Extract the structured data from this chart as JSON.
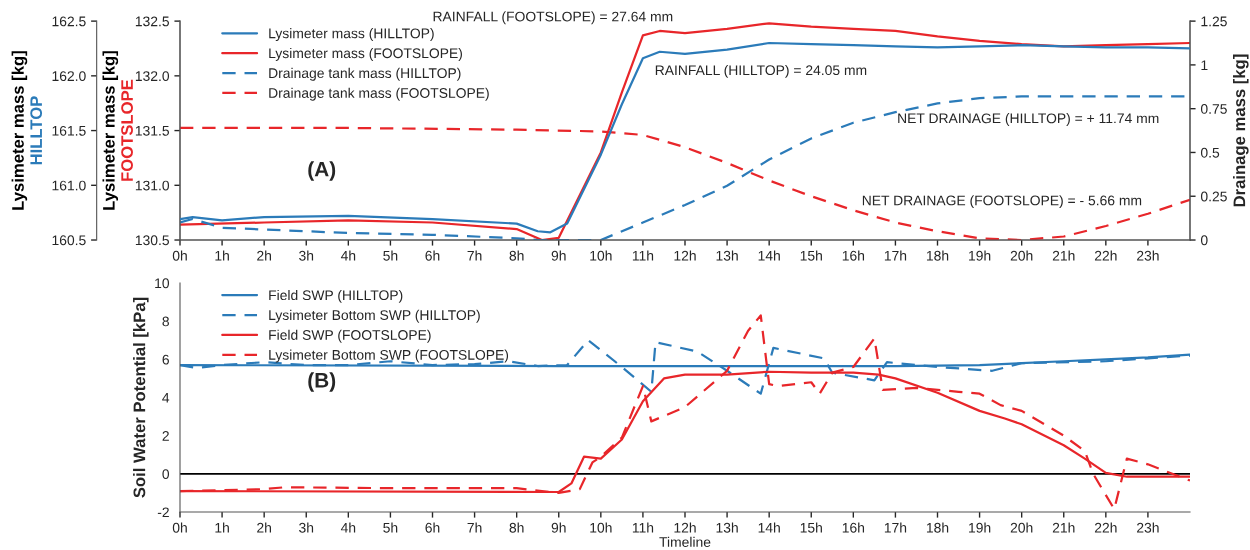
{
  "chart_data": [
    {
      "type": "line",
      "ylabel": "Lysimeter mass [kg]\nFOOTSLOPE",
      "y2label": "Drainage mass [kg]",
      "y3label": "Lysimeter mass [kg]\nHILLTOP",
      "xlim": [
        0,
        24
      ],
      "xticks": [
        {
          "value": 0,
          "label": "0h"
        },
        {
          "value": 1,
          "label": "1h"
        },
        {
          "value": 2,
          "label": "2h"
        },
        {
          "value": 3,
          "label": "3h"
        },
        {
          "value": 4,
          "label": "4h"
        },
        {
          "value": 5,
          "label": "5h"
        },
        {
          "value": 6,
          "label": "6h"
        },
        {
          "value": 7,
          "label": "7h"
        },
        {
          "value": 8,
          "label": "8h"
        },
        {
          "value": 9,
          "label": "9h"
        },
        {
          "value": 10,
          "label": "10h"
        },
        {
          "value": 11,
          "label": "11h"
        },
        {
          "value": 12,
          "label": "12h"
        },
        {
          "value": 13,
          "label": "13h"
        },
        {
          "value": 14,
          "label": "14h"
        },
        {
          "value": 15,
          "label": "15h"
        },
        {
          "value": 16,
          "label": "16h"
        },
        {
          "value": 17,
          "label": "17h"
        },
        {
          "value": 18,
          "label": "18h"
        },
        {
          "value": 19,
          "label": "19h"
        },
        {
          "value": 20,
          "label": "20h"
        },
        {
          "value": 21,
          "label": "21h"
        },
        {
          "value": 22,
          "label": "22h"
        },
        {
          "value": 23,
          "label": "23h"
        }
      ],
      "ylim": [
        130.5,
        132.5
      ],
      "yticks": [
        130.5,
        {
          "value": 131,
          "label": "131.0"
        },
        131.5,
        {
          "value": 132,
          "label": "132.0"
        },
        132.5
      ],
      "y2lim": [
        0,
        1.25
      ],
      "y2ticks": [
        0,
        0.25,
        0.5,
        0.75,
        1,
        1.25
      ],
      "y3lim": [
        160.5,
        162.5
      ],
      "y3ticks": [
        160.5,
        {
          "value": 161,
          "label": "161.0"
        },
        161.5,
        {
          "value": 162,
          "label": "162.0"
        },
        162.5
      ],
      "legend": "top left",
      "series": [
        {
          "name": "Lysimeter mass (HILLTOP)",
          "color": "#2b7bb9",
          "axis": "y3",
          "line_style": "solid",
          "x": [
            0,
            0.3,
            1,
            2,
            4,
            6,
            8,
            8.5,
            8.8,
            9.2,
            10,
            10.5,
            11,
            11.4,
            12,
            13,
            14,
            15,
            16,
            17,
            18,
            19,
            20,
            21,
            22,
            23,
            24
          ],
          "values": [
            160.69,
            160.71,
            160.68,
            160.71,
            160.72,
            160.69,
            160.65,
            160.58,
            160.57,
            160.65,
            161.28,
            161.74,
            162.16,
            162.22,
            162.2,
            162.24,
            162.3,
            162.29,
            162.28,
            162.27,
            162.26,
            162.27,
            162.28,
            162.27,
            162.26,
            162.26,
            162.25
          ]
        },
        {
          "name": "Lysimeter mass (FOOTSLOPE)",
          "color": "#e8262a",
          "axis": "y",
          "line_style": "solid",
          "x": [
            0,
            2,
            4,
            6,
            8,
            8.6,
            9,
            10,
            10.5,
            11,
            11.4,
            12,
            13,
            14,
            15,
            16,
            17,
            18,
            19,
            20,
            21,
            22,
            23,
            24
          ],
          "values": [
            130.64,
            130.66,
            130.68,
            130.66,
            130.6,
            130.5,
            130.52,
            131.3,
            131.85,
            132.37,
            132.41,
            132.39,
            132.43,
            132.48,
            132.45,
            132.43,
            132.41,
            132.36,
            132.32,
            132.29,
            132.27,
            132.28,
            132.29,
            132.3
          ]
        },
        {
          "name": "Drainage tank mass (HILLTOP)",
          "color": "#2b7bb9",
          "axis": "y2",
          "line_style": "dashed",
          "x": [
            0,
            0.3,
            1,
            2,
            4,
            6,
            8,
            8.5,
            10,
            11,
            12,
            13,
            14,
            15,
            16,
            17,
            18,
            19,
            20,
            22,
            24
          ],
          "values": [
            0.1,
            0.12,
            0.07,
            0.06,
            0.04,
            0.03,
            0.01,
            0,
            0,
            0.1,
            0.2,
            0.31,
            0.46,
            0.58,
            0.67,
            0.73,
            0.78,
            0.81,
            0.82,
            0.82,
            0.82
          ]
        },
        {
          "name": "Drainage tank mass (FOOTSLOPE)",
          "color": "#e8262a",
          "axis": "y2",
          "line_style": "dashed",
          "x": [
            0,
            4,
            8,
            10,
            11,
            12,
            13,
            14,
            15,
            16,
            17,
            18,
            19,
            20,
            21,
            22,
            23,
            24
          ],
          "values": [
            0.64,
            0.64,
            0.63,
            0.62,
            0.6,
            0.53,
            0.44,
            0.34,
            0.25,
            0.17,
            0.1,
            0.05,
            0.01,
            0,
            0.02,
            0.08,
            0.15,
            0.23
          ]
        }
      ],
      "annotations": [
        "RAINFALL (FOOTSLOPE) = 27.64 mm",
        "RAINFALL (HILLTOP) = 24.05 mm",
        "NET DRAINAGE (HILLTOP) = + 11.74 mm",
        "NET DRAINAGE (FOOTSLOPE) = - 5.66 mm",
        "(A)"
      ]
    },
    {
      "type": "line",
      "ylabel": "Soil Water Potential [kPa]",
      "xlabel": "Timeline",
      "xlim": [
        0,
        24
      ],
      "xticks": [
        {
          "value": 0,
          "label": "0h"
        },
        {
          "value": 1,
          "label": "1h"
        },
        {
          "value": 2,
          "label": "2h"
        },
        {
          "value": 3,
          "label": "3h"
        },
        {
          "value": 4,
          "label": "4h"
        },
        {
          "value": 5,
          "label": "5h"
        },
        {
          "value": 6,
          "label": "6h"
        },
        {
          "value": 7,
          "label": "7h"
        },
        {
          "value": 8,
          "label": "8h"
        },
        {
          "value": 9,
          "label": "9h"
        },
        {
          "value": 10,
          "label": "10h"
        },
        {
          "value": 11,
          "label": "11h"
        },
        {
          "value": 12,
          "label": "12h"
        },
        {
          "value": 13,
          "label": "13h"
        },
        {
          "value": 14,
          "label": "14h"
        },
        {
          "value": 15,
          "label": "15h"
        },
        {
          "value": 16,
          "label": "16h"
        },
        {
          "value": 17,
          "label": "17h"
        },
        {
          "value": 18,
          "label": "18h"
        },
        {
          "value": 19,
          "label": "19h"
        },
        {
          "value": 20,
          "label": "20h"
        },
        {
          "value": 21,
          "label": "21h"
        },
        {
          "value": 22,
          "label": "22h"
        },
        {
          "value": 23,
          "label": "23h"
        }
      ],
      "ylim": [
        -2,
        10
      ],
      "yticks": [
        -2,
        0,
        2,
        4,
        6,
        8,
        10
      ],
      "legend": "top left",
      "ref_lines": [
        {
          "axis": "y",
          "value": 0,
          "color": "#000000"
        }
      ],
      "series": [
        {
          "name": "Field SWP (HILLTOP)",
          "color": "#2b7bb9",
          "line_style": "solid",
          "x": [
            0,
            9,
            11,
            14,
            17,
            19,
            20,
            21,
            22,
            23,
            24
          ],
          "values": [
            5.7,
            5.65,
            5.65,
            5.65,
            5.65,
            5.7,
            5.8,
            5.9,
            6.0,
            6.1,
            6.25
          ]
        },
        {
          "name": "Lysimeter Bottom SWP (HILLTOP)",
          "color": "#2b7bb9",
          "line_style": "dashed",
          "x": [
            0,
            0.4,
            1,
            2,
            3,
            4,
            5,
            6,
            7,
            7.8,
            8.5,
            9.2,
            9.7,
            10.5,
            11.2,
            11.3,
            12.3,
            13,
            13.8,
            14.1,
            15.3,
            15.5,
            16.5,
            16.8,
            18,
            19.3,
            20,
            22,
            24
          ],
          "values": [
            5.7,
            5.55,
            5.7,
            5.85,
            5.7,
            5.7,
            5.9,
            5.7,
            5.75,
            5.9,
            5.65,
            5.7,
            7.0,
            5.6,
            4.3,
            6.9,
            6.4,
            5.4,
            4.2,
            6.6,
            6.05,
            5.3,
            4.9,
            5.85,
            5.6,
            5.4,
            5.8,
            5.9,
            6.2
          ]
        },
        {
          "name": "Field SWP (FOOTSLOPE)",
          "color": "#e8262a",
          "line_style": "solid",
          "x": [
            0,
            9,
            9.3,
            9.6,
            10,
            10.5,
            11,
            11.5,
            12,
            13,
            14,
            15,
            16,
            16.6,
            17,
            18,
            19,
            19.6,
            20,
            21,
            21.5,
            22,
            22.5,
            24
          ],
          "values": [
            -0.9,
            -0.95,
            -0.5,
            0.9,
            0.8,
            1.8,
            3.8,
            5.0,
            5.2,
            5.2,
            5.35,
            5.3,
            5.3,
            5.2,
            5.0,
            4.25,
            3.3,
            2.9,
            2.6,
            1.5,
            0.8,
            0.05,
            -0.15,
            -0.15
          ]
        },
        {
          "name": "Lysimeter Bottom SWP (FOOTSLOPE)",
          "color": "#e8262a",
          "line_style": "dashed",
          "x": [
            0,
            2,
            2.5,
            5,
            8,
            9,
            9.5,
            9.8,
            10,
            10.5,
            11,
            11.2,
            12,
            13,
            13.5,
            13.8,
            14,
            14.2,
            15,
            15.2,
            15.5,
            16,
            16.5,
            16.7,
            17.5,
            18.5,
            19,
            19.5,
            20,
            21,
            21.5,
            21.7,
            22.2,
            22.5,
            23,
            24
          ],
          "values": [
            -0.9,
            -0.8,
            -0.7,
            -0.75,
            -0.75,
            -1.0,
            -0.8,
            0.6,
            0.9,
            1.9,
            4.6,
            2.75,
            3.5,
            5.4,
            7.5,
            8.3,
            4.7,
            4.6,
            4.8,
            4.2,
            5.3,
            5.6,
            7.1,
            4.4,
            4.5,
            4.3,
            4.2,
            3.6,
            3.3,
            2.0,
            1.2,
            0.0,
            -1.85,
            0.8,
            0.5,
            -0.35
          ]
        }
      ],
      "annotations": [
        "(B)"
      ]
    }
  ]
}
